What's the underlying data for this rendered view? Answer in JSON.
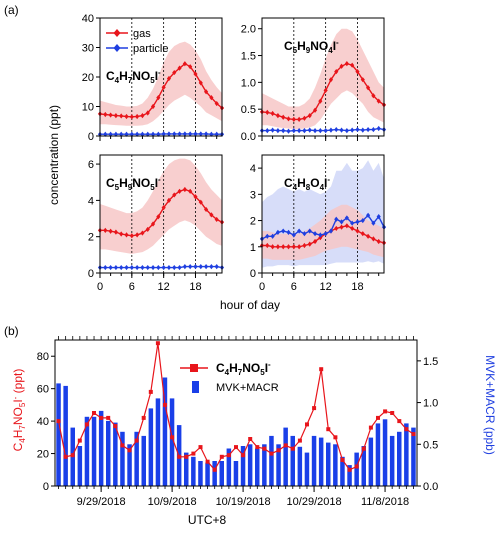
{
  "labels": {
    "panel_a": "(a)",
    "panel_b": "(b)",
    "a_ylabel": "concentration (ppt)",
    "a_xlabel": "hour of day",
    "b_xlabel": "UTC+8",
    "legend_gas": "gas",
    "legend_particle": "particle",
    "b_legend_line": "C4H7NO5I-",
    "b_legend_bar": "MVK+MACR",
    "b_ylabel_left": "C4H7NO5I- (ppt)",
    "b_ylabel_right": "MVK+MACR (ppb)"
  },
  "colors": {
    "gas": "#e8151b",
    "particle": "#1f3fe0",
    "gas_band": "#f7c7c7",
    "particle_band": "#cdd4f7",
    "bar": "#1a3fe8"
  },
  "chart_data": [
    {
      "type": "line",
      "title": "C4H7NO5I-",
      "xlabel": "hour of day",
      "ylabel": "concentration (ppt)",
      "xlim": [
        0,
        23
      ],
      "ylim": [
        0,
        40
      ],
      "xticks": [
        0,
        6,
        12,
        18
      ],
      "yticks": [
        0,
        10,
        20,
        30,
        40
      ],
      "x": [
        0,
        1,
        2,
        3,
        4,
        5,
        6,
        7,
        8,
        9,
        10,
        11,
        12,
        13,
        14,
        15,
        16,
        17,
        18,
        19,
        20,
        21,
        22,
        23
      ],
      "series": [
        {
          "name": "gas",
          "values": [
            7.5,
            7.3,
            7.1,
            6.9,
            6.8,
            6.6,
            6.5,
            6.6,
            6.9,
            7.8,
            10,
            13,
            16.5,
            19.5,
            21.5,
            23,
            24.5,
            23.5,
            21,
            18,
            15,
            13,
            11,
            9.5
          ],
          "band_low": [
            4,
            4,
            3.8,
            3.7,
            3.6,
            3.5,
            3.5,
            3.5,
            3.6,
            4,
            5,
            6.5,
            8.5,
            10.5,
            12,
            13,
            14,
            13,
            11.5,
            10,
            8,
            7,
            6,
            5
          ],
          "band_high": [
            12,
            11.5,
            11,
            10.5,
            10.3,
            10,
            10,
            10.2,
            11,
            13,
            16,
            20,
            25,
            28.5,
            30.5,
            31.5,
            32,
            31,
            29,
            26,
            22,
            19,
            16.5,
            14.5
          ]
        },
        {
          "name": "particle",
          "values": [
            0.6,
            0.6,
            0.6,
            0.6,
            0.6,
            0.6,
            0.6,
            0.6,
            0.6,
            0.6,
            0.6,
            0.6,
            0.7,
            0.7,
            0.7,
            0.7,
            0.7,
            0.7,
            0.7,
            0.7,
            0.7,
            0.6,
            0.6,
            0.6
          ]
        }
      ]
    },
    {
      "type": "line",
      "title": "C5H9NO4I-",
      "xlim": [
        0,
        23
      ],
      "ylim": [
        0,
        2.2
      ],
      "xticks": [
        0,
        6,
        12,
        18
      ],
      "yticks": [
        0.0,
        0.5,
        1.0,
        1.5,
        2.0
      ],
      "x": [
        0,
        1,
        2,
        3,
        4,
        5,
        6,
        7,
        8,
        9,
        10,
        11,
        12,
        13,
        14,
        15,
        16,
        17,
        18,
        19,
        20,
        21,
        22,
        23
      ],
      "series": [
        {
          "name": "gas",
          "values": [
            0.45,
            0.44,
            0.42,
            0.38,
            0.35,
            0.32,
            0.31,
            0.31,
            0.33,
            0.38,
            0.48,
            0.65,
            0.85,
            1.05,
            1.2,
            1.3,
            1.35,
            1.32,
            1.2,
            1.05,
            0.9,
            0.75,
            0.65,
            0.58
          ],
          "band_low": [
            0.2,
            0.2,
            0.18,
            0.16,
            0.15,
            0.14,
            0.13,
            0.13,
            0.14,
            0.16,
            0.2,
            0.3,
            0.45,
            0.6,
            0.7,
            0.8,
            0.85,
            0.8,
            0.7,
            0.6,
            0.45,
            0.35,
            0.3,
            0.25
          ],
          "band_high": [
            0.8,
            0.75,
            0.7,
            0.65,
            0.6,
            0.55,
            0.55,
            0.55,
            0.6,
            0.7,
            0.9,
            1.15,
            1.45,
            1.7,
            1.9,
            2.0,
            2.0,
            1.95,
            1.8,
            1.6,
            1.4,
            1.2,
            1.0,
            0.9
          ]
        },
        {
          "name": "particle",
          "values": [
            0.1,
            0.1,
            0.11,
            0.1,
            0.1,
            0.09,
            0.1,
            0.1,
            0.1,
            0.11,
            0.1,
            0.1,
            0.1,
            0.11,
            0.12,
            0.11,
            0.1,
            0.11,
            0.12,
            0.11,
            0.12,
            0.12,
            0.14,
            0.12
          ]
        }
      ]
    },
    {
      "type": "line",
      "title": "C5H9NO5I-",
      "xlim": [
        0,
        23
      ],
      "ylim": [
        0,
        6.5
      ],
      "xticks": [
        0,
        6,
        12,
        18
      ],
      "yticks": [
        0,
        2,
        4,
        6
      ],
      "x": [
        0,
        1,
        2,
        3,
        4,
        5,
        6,
        7,
        8,
        9,
        10,
        11,
        12,
        13,
        14,
        15,
        16,
        17,
        18,
        19,
        20,
        21,
        22,
        23
      ],
      "series": [
        {
          "name": "gas",
          "values": [
            2.35,
            2.35,
            2.3,
            2.25,
            2.15,
            2.1,
            2.05,
            2.1,
            2.2,
            2.4,
            2.7,
            3.1,
            3.6,
            4.0,
            4.3,
            4.5,
            4.6,
            4.5,
            4.2,
            3.9,
            3.5,
            3.2,
            2.95,
            2.8
          ],
          "band_low": [
            1.3,
            1.3,
            1.25,
            1.2,
            1.15,
            1.1,
            1.05,
            1.1,
            1.15,
            1.3,
            1.5,
            1.8,
            2.1,
            2.4,
            2.6,
            2.8,
            2.9,
            2.8,
            2.6,
            2.3,
            2.0,
            1.8,
            1.6,
            1.5
          ],
          "band_high": [
            3.8,
            3.7,
            3.6,
            3.5,
            3.4,
            3.3,
            3.3,
            3.4,
            3.6,
            4.0,
            4.5,
            5.1,
            5.6,
            6.0,
            6.2,
            6.3,
            6.3,
            6.2,
            5.9,
            5.5,
            5.0,
            4.6,
            4.3,
            4.0
          ]
        },
        {
          "name": "particle",
          "values": [
            0.3,
            0.3,
            0.3,
            0.3,
            0.3,
            0.3,
            0.3,
            0.3,
            0.3,
            0.3,
            0.3,
            0.3,
            0.3,
            0.3,
            0.3,
            0.3,
            0.35,
            0.35,
            0.35,
            0.35,
            0.35,
            0.35,
            0.35,
            0.3
          ]
        }
      ]
    },
    {
      "type": "line",
      "title": "C4H8O4I-",
      "xlim": [
        0,
        23
      ],
      "ylim": [
        0,
        4.5
      ],
      "xticks": [
        0,
        6,
        12,
        18
      ],
      "yticks": [
        0,
        1,
        2,
        3,
        4
      ],
      "x": [
        0,
        1,
        2,
        3,
        4,
        5,
        6,
        7,
        8,
        9,
        10,
        11,
        12,
        13,
        14,
        15,
        16,
        17,
        18,
        19,
        20,
        21,
        22,
        23
      ],
      "series": [
        {
          "name": "gas",
          "values": [
            1.05,
            1.05,
            1.0,
            1.0,
            1.0,
            1.0,
            1.0,
            1.0,
            1.05,
            1.1,
            1.2,
            1.35,
            1.5,
            1.6,
            1.7,
            1.75,
            1.8,
            1.7,
            1.6,
            1.5,
            1.4,
            1.3,
            1.2,
            1.15
          ],
          "band_low": [
            0.55,
            0.55,
            0.5,
            0.5,
            0.5,
            0.5,
            0.5,
            0.5,
            0.55,
            0.6,
            0.65,
            0.75,
            0.85,
            0.9,
            0.95,
            1.0,
            1.0,
            0.95,
            0.9,
            0.85,
            0.8,
            0.7,
            0.65,
            0.6
          ],
          "band_high": [
            1.6,
            1.6,
            1.55,
            1.5,
            1.5,
            1.5,
            1.5,
            1.5,
            1.6,
            1.7,
            1.85,
            2.0,
            2.2,
            2.4,
            2.5,
            2.6,
            2.6,
            2.5,
            2.4,
            2.2,
            2.0,
            1.9,
            1.8,
            1.7
          ]
        },
        {
          "name": "particle",
          "values": [
            1.3,
            1.4,
            1.4,
            1.55,
            1.6,
            1.55,
            1.45,
            1.6,
            1.5,
            1.6,
            1.5,
            1.45,
            1.5,
            1.6,
            2.05,
            1.95,
            2.1,
            1.9,
            1.95,
            2.0,
            2.2,
            1.9,
            2.15,
            1.75
          ],
          "band_low": [
            0.2,
            0.25,
            0.25,
            0.3,
            0.3,
            0.3,
            0.25,
            0.3,
            0.3,
            0.3,
            0.3,
            0.3,
            0.3,
            0.35,
            0.4,
            0.4,
            0.4,
            0.4,
            0.4,
            0.4,
            0.45,
            0.4,
            0.45,
            0.35
          ],
          "band_high": [
            2.7,
            2.9,
            3.0,
            3.2,
            3.3,
            3.2,
            3.1,
            3.2,
            3.1,
            3.2,
            3.1,
            3.0,
            3.1,
            3.3,
            3.9,
            3.9,
            4.2,
            3.9,
            3.9,
            4.0,
            4.3,
            3.9,
            4.2,
            3.6
          ]
        }
      ]
    },
    {
      "type": "bar+line",
      "xlabel": "UTC+8",
      "ylabel": "C4H7NO5I- (ppt)",
      "ylabel_right": "MVK+MACR (ppb)",
      "ylim": [
        0,
        90
      ],
      "ylim_right": [
        0,
        1.75
      ],
      "yticks": [
        0,
        20,
        40,
        60,
        80
      ],
      "yticks_right": [
        0.0,
        0.5,
        1.0,
        1.5
      ],
      "xtick_labels": [
        "9/29/2018",
        "10/9/2018",
        "10/19/2018",
        "10/29/2018",
        "11/8/2018"
      ],
      "xtick_positions": [
        6,
        16,
        26,
        36,
        46
      ],
      "x_days": [
        0,
        1,
        2,
        3,
        4,
        5,
        6,
        7,
        8,
        9,
        10,
        11,
        12,
        13,
        14,
        15,
        16,
        17,
        18,
        19,
        20,
        21,
        22,
        23,
        24,
        25,
        26,
        27,
        28,
        29,
        30,
        31,
        32,
        33,
        34,
        35,
        36,
        37,
        38,
        39,
        40,
        41,
        42,
        43,
        44,
        45,
        46,
        47,
        48,
        49,
        50
      ],
      "series": [
        {
          "name": "MVK+MACR",
          "type": "bar",
          "axis": "right",
          "values": [
            1.23,
            1.2,
            0.7,
            0.48,
            0.83,
            0.83,
            0.9,
            0.78,
            0.76,
            0.65,
            0.5,
            0.65,
            0.6,
            0.93,
            1.05,
            1.3,
            1.05,
            0.73,
            0.4,
            0.35,
            0.3,
            0.28,
            0.3,
            0.3,
            0.45,
            0.3,
            0.48,
            0.5,
            0.45,
            0.5,
            0.6,
            0.5,
            0.7,
            0.6,
            0.47,
            0.4,
            0.6,
            0.58,
            0.52,
            0.5,
            0.35,
            0.25,
            0.4,
            0.48,
            0.58,
            0.75,
            0.8,
            0.6,
            0.65,
            0.75,
            0.7
          ]
        },
        {
          "name": "C4H7NO5I-",
          "type": "line",
          "axis": "left",
          "values": [
            40,
            18,
            19,
            28,
            38,
            45,
            42,
            42,
            37,
            25,
            22,
            28,
            42,
            58,
            88,
            50,
            30,
            18,
            18,
            20,
            24,
            15,
            10,
            18,
            19,
            24,
            19,
            29,
            24,
            23,
            20,
            22,
            25,
            23,
            28,
            38,
            48,
            72,
            35,
            30,
            16,
            10,
            12,
            23,
            36,
            42,
            46,
            45,
            40,
            35,
            32
          ]
        }
      ]
    }
  ]
}
